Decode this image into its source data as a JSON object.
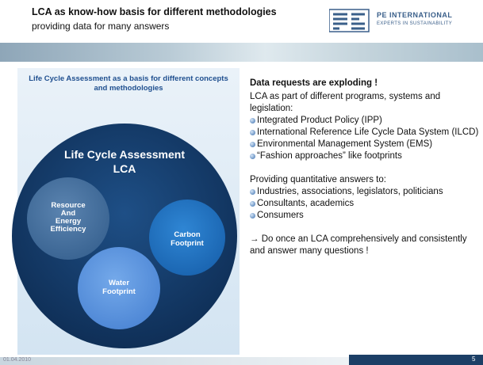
{
  "header": {
    "title": "LCA as know-how basis for different methodologies",
    "subtitle": "providing data for many answers",
    "logo_name": "PE INTERNATIONAL",
    "logo_tagline": "EXPERTS IN SUSTAINABILITY"
  },
  "left": {
    "heading": "Life Cycle Assessment  as a basis for different concepts and methodologies",
    "big_circle": [
      "Life Cycle Assessment",
      "LCA"
    ],
    "circles": [
      [
        "Resource",
        "And",
        "Energy",
        "Efficiency"
      ],
      [
        "Carbon",
        "Footprint"
      ],
      [
        "Water",
        "Footprint"
      ]
    ]
  },
  "right": {
    "heading": "Data requests are exploding !",
    "intro": "LCA  as part of different programs, systems and legislation:",
    "bullets1": [
      "Integrated Product Policy (IPP)",
      "International Reference Life Cycle Data System (ILCD)",
      "Environmental Management System (EMS)",
      "“Fashion approaches” like footprints"
    ],
    "intro2": "Providing quantitative answers to:",
    "bullets2": [
      "Industries, associations, legislators, politicians",
      "Consultants, academics",
      "Consumers"
    ],
    "conclusion": "→ Do once an LCA comprehensively and consistently and answer many questions !"
  },
  "footer": {
    "date": "01.04.2010",
    "page": "5"
  }
}
